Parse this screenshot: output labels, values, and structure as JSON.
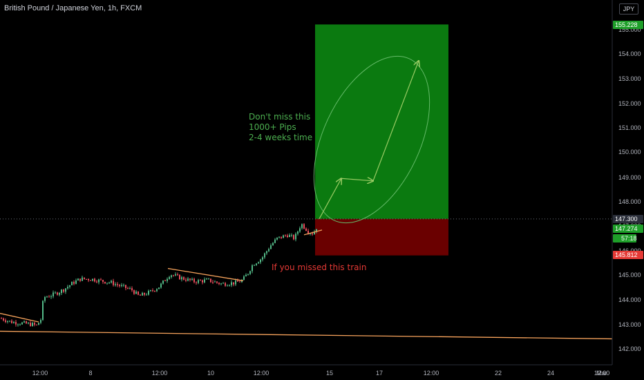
{
  "header": {
    "title": "British Pound / Japanese Yen, 1h, FXCM",
    "currency": "JPY"
  },
  "colors": {
    "bull": "#26a69a",
    "bear": "#ef5350",
    "bull_candle": "#53b987",
    "bear_candle": "#eb4d5c",
    "trendline": "#f7a35c",
    "target_zone": "#0b7a10",
    "stop_zone": "#6a0000",
    "annotation_green": "#4caf50",
    "annotation_red": "#e53935",
    "ellipse": "#66bb6a"
  },
  "chart_data": {
    "type": "candlestick",
    "ylim": [
      142.0,
      156.0
    ],
    "y_ticks": [
      "142.000",
      "143.000",
      "144.000",
      "145.000",
      "146.000",
      "147.000",
      "148.000",
      "149.000",
      "150.000",
      "151.000",
      "152.000",
      "153.000",
      "154.000",
      "155.000"
    ],
    "x_ticks": [
      "12:00",
      "8",
      "12:00",
      "10",
      "12:00",
      "15",
      "17",
      "12:00",
      "22",
      "24",
      "12:00",
      "Mar"
    ],
    "price_badges": [
      {
        "label": "155.228",
        "value": 155.228,
        "kind": "target"
      },
      {
        "label": "147.300",
        "value": 147.3,
        "kind": "entry"
      },
      {
        "label": "147.274",
        "value": 147.274,
        "kind": "last"
      },
      {
        "label": "57:18",
        "value": 146.95,
        "kind": "countdown"
      },
      {
        "label": "145.812",
        "value": 145.812,
        "kind": "stop"
      }
    ],
    "price_path": [
      [
        0,
        143.25
      ],
      [
        15,
        143.1
      ],
      [
        30,
        143.05
      ],
      [
        45,
        143.0
      ],
      [
        52,
        142.95
      ],
      [
        58,
        143.2
      ],
      [
        62,
        144.1
      ],
      [
        75,
        144.2
      ],
      [
        90,
        144.4
      ],
      [
        105,
        144.7
      ],
      [
        115,
        144.85
      ],
      [
        130,
        144.85
      ],
      [
        150,
        144.75
      ],
      [
        160,
        144.7
      ],
      [
        175,
        144.55
      ],
      [
        190,
        144.4
      ],
      [
        200,
        144.15
      ],
      [
        215,
        144.3
      ],
      [
        230,
        144.55
      ],
      [
        245,
        145.05
      ],
      [
        260,
        144.9
      ],
      [
        280,
        144.75
      ],
      [
        300,
        144.8
      ],
      [
        320,
        144.65
      ],
      [
        340,
        144.7
      ],
      [
        350,
        144.8
      ],
      [
        358,
        145.1
      ],
      [
        365,
        145.45
      ],
      [
        378,
        145.7
      ],
      [
        390,
        146.2
      ],
      [
        400,
        146.5
      ],
      [
        415,
        146.65
      ],
      [
        425,
        146.5
      ],
      [
        435,
        147.1
      ],
      [
        445,
        146.8
      ],
      [
        452,
        146.7
      ],
      [
        458,
        147.0
      ]
    ],
    "trendlines": [
      {
        "from": [
          0,
          143.45
        ],
        "to": [
          56,
          143.1
        ]
      },
      {
        "from": [
          243,
          145.28
        ],
        "to": [
          352,
          144.78
        ]
      },
      {
        "from": [
          440,
          146.65
        ],
        "to": [
          466,
          146.85
        ]
      },
      {
        "from": [
          0,
          142.72
        ],
        "to": [
          886,
          142.41
        ]
      }
    ],
    "target_zone": {
      "x_start": 456,
      "x_end": 649,
      "y_top": 155.228,
      "y_bottom": 147.3
    },
    "stop_zone": {
      "x_start": 456,
      "x_end": 649,
      "y_top": 147.3,
      "y_bottom": 145.812
    },
    "arrows": [
      {
        "from": [
          462,
          147.3
        ],
        "to": [
          494,
          148.95
        ]
      },
      {
        "from": [
          494,
          148.95
        ],
        "to": [
          540,
          148.85
        ]
      },
      {
        "from": [
          540,
          148.85
        ],
        "to": [
          606,
          153.75
        ]
      }
    ],
    "annotations": [
      {
        "lines": [
          "Don't miss this",
          "1000+ Pips",
          "2-4 weeks time"
        ],
        "color": "annotation_green"
      },
      {
        "lines": [
          "If you missed this train"
        ],
        "color": "annotation_red"
      }
    ]
  }
}
